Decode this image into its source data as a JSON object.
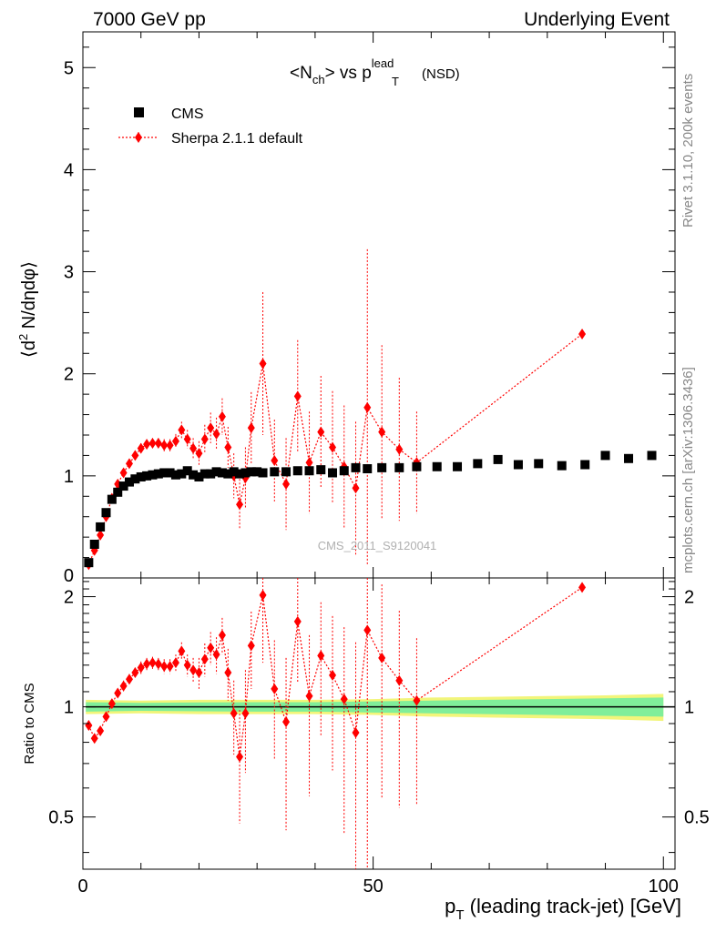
{
  "header": {
    "left": "7000 GeV pp",
    "right": "Underlying Event"
  },
  "side_labels": {
    "rivet": "Rivet 3.1.10,  200k events",
    "mcplots": "mcplots.cern.ch [arXiv:1306.3436]"
  },
  "watermark": "CMS_2011_S9120041",
  "colors": {
    "data": "#000000",
    "mc": "#ff0000",
    "band_inner": "#80ee9a",
    "band_outer": "#f2f57a"
  },
  "chart_data": [
    {
      "type": "scatter",
      "title": "<N_ch> vs p_T^lead (NSD)",
      "title_parts": {
        "pre": "<N",
        "sub1": "ch",
        "mid": "> vs p",
        "sup": "lead",
        "sub2": "T",
        "post": "(NSD)"
      },
      "ylabel": "⟨d² N/dηdφ⟩",
      "ylabel_parts": {
        "a": "⟨d",
        "sup": "2",
        "b": " N/dηdφ⟩"
      },
      "xlim": [
        0,
        102
      ],
      "ylim": [
        0,
        5.35
      ],
      "yticks": [
        1,
        2,
        3,
        4,
        5
      ],
      "ytick_labels": [
        "1",
        "2",
        "3",
        "4",
        "5"
      ],
      "ytick_zero_label": "0",
      "legend": {
        "position": "top-left",
        "entries": [
          "CMS",
          "Sherpa 2.1.1 default"
        ]
      },
      "series": [
        {
          "name": "CMS",
          "marker": "square",
          "x": [
            1.0,
            2.0,
            3.0,
            4.0,
            5.0,
            6.0,
            7.0,
            8.0,
            9.0,
            10.0,
            11.0,
            12.0,
            13.0,
            14.0,
            15.0,
            16.0,
            17.0,
            18.0,
            19.0,
            20.0,
            21.0,
            22.0,
            23.0,
            24.0,
            25.0,
            26.0,
            27.0,
            28.0,
            29.0,
            30.0,
            31.0,
            33.0,
            35.0,
            37.0,
            39.0,
            41.0,
            43.0,
            45.0,
            47.0,
            49.0,
            51.5,
            54.5,
            57.5,
            61.0,
            64.5,
            68.0,
            71.5,
            75.0,
            78.5,
            82.5,
            86.5,
            90.0,
            94.0,
            98.0
          ],
          "y": [
            0.15,
            0.33,
            0.5,
            0.64,
            0.77,
            0.84,
            0.9,
            0.94,
            0.97,
            0.99,
            1.0,
            1.01,
            1.02,
            1.03,
            1.03,
            1.01,
            1.02,
            1.05,
            1.01,
            0.99,
            1.02,
            1.02,
            1.04,
            1.03,
            1.02,
            1.04,
            1.02,
            1.03,
            1.04,
            1.04,
            1.03,
            1.04,
            1.04,
            1.05,
            1.05,
            1.06,
            1.03,
            1.05,
            1.08,
            1.07,
            1.08,
            1.08,
            1.09,
            1.09,
            1.09,
            1.12,
            1.16,
            1.11,
            1.12,
            1.1,
            1.11,
            1.2,
            1.17,
            1.2
          ]
        },
        {
          "name": "Sherpa 2.1.1 default",
          "marker": "diamond",
          "x": [
            1.0,
            2.0,
            3.0,
            4.0,
            5.0,
            6.0,
            7.0,
            8.0,
            9.0,
            10.0,
            11.0,
            12.0,
            13.0,
            14.0,
            15.0,
            16.0,
            17.0,
            18.0,
            19.0,
            20.0,
            21.0,
            22.0,
            23.0,
            24.0,
            25.0,
            26.0,
            27.0,
            28.0,
            29.0,
            31.0,
            33.0,
            35.0,
            37.0,
            39.0,
            41.0,
            43.0,
            45.0,
            47.0,
            49.0,
            51.5,
            54.5,
            57.5,
            86.0
          ],
          "y": [
            0.13,
            0.27,
            0.42,
            0.6,
            0.78,
            0.92,
            1.03,
            1.12,
            1.2,
            1.27,
            1.31,
            1.32,
            1.32,
            1.3,
            1.3,
            1.34,
            1.45,
            1.36,
            1.27,
            1.22,
            1.36,
            1.47,
            1.41,
            1.58,
            1.28,
            1.0,
            0.72,
            0.98,
            1.47,
            2.1,
            1.15,
            0.92,
            1.78,
            1.13,
            1.43,
            1.28,
            1.09,
            0.88,
            1.67,
            1.43,
            1.26,
            1.13,
            2.39
          ],
          "yerr": [
            0.02,
            0.02,
            0.02,
            0.03,
            0.03,
            0.03,
            0.04,
            0.04,
            0.04,
            0.05,
            0.05,
            0.05,
            0.05,
            0.06,
            0.06,
            0.07,
            0.08,
            0.09,
            0.1,
            0.12,
            0.14,
            0.15,
            0.16,
            0.18,
            0.2,
            0.22,
            0.25,
            0.3,
            0.35,
            0.7,
            0.4,
            0.45,
            0.55,
            0.5,
            0.55,
            0.55,
            0.6,
            0.65,
            1.55,
            0.85,
            0.7,
            0.5,
            0.02
          ]
        }
      ]
    },
    {
      "type": "scatter",
      "title": "",
      "ylabel": "Ratio to CMS",
      "xlabel": "p_T (leading track-jet) [GeV]",
      "xlabel_parts": {
        "pre": "p",
        "sub": "T",
        "post": " (leading track-jet) [GeV]"
      },
      "xlim": [
        0,
        102
      ],
      "ylim": [
        0.36,
        2.25
      ],
      "xticks": [
        0,
        50,
        100
      ],
      "xtick_labels": [
        "0",
        "50",
        "100"
      ],
      "yticks": [
        0.5,
        1,
        2
      ],
      "ytick_labels": [
        "0.5",
        "1",
        "2"
      ],
      "reference_line": 1.0,
      "band": {
        "x": [
          0.5,
          10,
          20,
          30,
          40,
          50,
          60,
          70,
          80,
          90,
          100
        ],
        "inner": [
          0.03,
          0.025,
          0.028,
          0.03,
          0.03,
          0.035,
          0.04,
          0.045,
          0.05,
          0.055,
          0.06
        ],
        "outer": [
          0.045,
          0.04,
          0.045,
          0.045,
          0.045,
          0.05,
          0.06,
          0.065,
          0.07,
          0.075,
          0.085
        ]
      },
      "series": [
        {
          "name": "Sherpa 2.1.1 default",
          "marker": "diamond",
          "x": [
            1.0,
            2.0,
            3.0,
            4.0,
            5.0,
            6.0,
            7.0,
            8.0,
            9.0,
            10.0,
            11.0,
            12.0,
            13.0,
            14.0,
            15.0,
            16.0,
            17.0,
            18.0,
            19.0,
            20.0,
            21.0,
            22.0,
            23.0,
            24.0,
            25.0,
            26.0,
            27.0,
            28.0,
            29.0,
            31.0,
            33.0,
            35.0,
            37.0,
            39.0,
            41.0,
            43.0,
            45.0,
            47.0,
            49.0,
            51.5,
            54.5,
            57.5,
            86.0
          ],
          "y": [
            0.89,
            0.82,
            0.86,
            0.94,
            1.02,
            1.09,
            1.14,
            1.19,
            1.24,
            1.28,
            1.31,
            1.32,
            1.31,
            1.29,
            1.29,
            1.32,
            1.42,
            1.3,
            1.26,
            1.24,
            1.35,
            1.45,
            1.39,
            1.57,
            1.24,
            0.96,
            0.73,
            0.96,
            1.47,
            2.02,
            1.12,
            0.91,
            1.71,
            1.07,
            1.38,
            1.22,
            1.05,
            0.85,
            1.62,
            1.36,
            1.18,
            1.04,
            2.12
          ],
          "yerr": [
            0.02,
            0.02,
            0.02,
            0.03,
            0.03,
            0.03,
            0.04,
            0.04,
            0.04,
            0.05,
            0.05,
            0.05,
            0.05,
            0.06,
            0.06,
            0.07,
            0.08,
            0.09,
            0.1,
            0.12,
            0.14,
            0.15,
            0.16,
            0.18,
            0.2,
            0.22,
            0.25,
            0.3,
            0.35,
            0.7,
            0.4,
            0.45,
            0.55,
            0.5,
            0.55,
            0.55,
            0.6,
            0.65,
            1.5,
            0.8,
            0.65,
            0.5,
            0.02
          ]
        }
      ]
    }
  ]
}
